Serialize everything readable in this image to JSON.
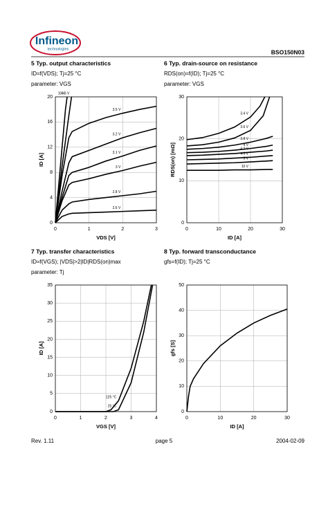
{
  "header": {
    "logo": "Infineon",
    "logo_sub": "technologies",
    "part": "BSO150N03"
  },
  "footer": {
    "rev": "Rev. 1.11",
    "page": "page 5",
    "date": "2004-02-09"
  },
  "chart_data": [
    {
      "type": "line",
      "title": "5 Typ. output characteristics",
      "subtitle": "ID=f(VDS); Tj=25 °C",
      "parameter": "parameter: VGS",
      "x_label": "VDS [V]",
      "y_label": "ID [A]",
      "xlim": [
        0,
        3
      ],
      "ylim": [
        0,
        20
      ],
      "xticks": [
        0,
        1,
        2,
        3
      ],
      "yticks": [
        0,
        4,
        8,
        12,
        16,
        20
      ],
      "grid": true,
      "series": [
        {
          "name": "10 V",
          "color": "#000000",
          "x": [
            0,
            0.1,
            0.2,
            0.3,
            0.35
          ],
          "values": [
            0,
            6,
            12,
            18,
            20
          ]
        },
        {
          "name": "4.5 V",
          "color": "#000000",
          "x": [
            0,
            0.1,
            0.2,
            0.3,
            0.4,
            0.48
          ],
          "values": [
            0,
            4.5,
            9,
            13,
            17,
            20
          ]
        },
        {
          "name": "3.5 V",
          "color": "#000000",
          "x": [
            0,
            0.2,
            0.4,
            0.5,
            1,
            1.5,
            2,
            2.5,
            3
          ],
          "values": [
            0,
            7.5,
            13.5,
            14.5,
            15.8,
            16.7,
            17.4,
            18,
            18.5
          ]
        },
        {
          "name": "3.2 V",
          "color": "#000000",
          "x": [
            0,
            0.2,
            0.4,
            0.5,
            1,
            1.5,
            2,
            2.5,
            3
          ],
          "values": [
            0,
            5,
            9.5,
            10.5,
            11.5,
            12.5,
            13.5,
            14.3,
            15
          ]
        },
        {
          "name": "3.1 V",
          "color": "#000000",
          "x": [
            0,
            0.2,
            0.4,
            0.5,
            1,
            1.5,
            2,
            2.5,
            3
          ],
          "values": [
            0,
            4,
            7.5,
            8,
            8.8,
            9.8,
            10.6,
            11.5,
            12.2
          ]
        },
        {
          "name": "3 V",
          "color": "#000000",
          "x": [
            0,
            0.2,
            0.4,
            0.5,
            1,
            1.5,
            2,
            2.5,
            3
          ],
          "values": [
            0,
            3.5,
            6,
            6.4,
            7,
            7.7,
            8.3,
            9,
            9.6
          ]
        },
        {
          "name": "2.8 V",
          "color": "#000000",
          "x": [
            0,
            0.2,
            0.4,
            0.5,
            1,
            1.5,
            2,
            2.5,
            3
          ],
          "values": [
            0,
            2,
            3,
            3.3,
            3.7,
            4,
            4.3,
            4.6,
            5
          ]
        },
        {
          "name": "2.6 V",
          "color": "#000000",
          "x": [
            0,
            0.2,
            0.4,
            0.5,
            1,
            1.5,
            2,
            2.5,
            3
          ],
          "values": [
            0,
            1,
            1.4,
            1.5,
            1.6,
            1.7,
            1.8,
            1.9,
            2
          ]
        }
      ]
    },
    {
      "type": "line",
      "title": "6 Typ. drain-source on resistance",
      "subtitle": "RDS(on)=f(ID); Tj=25 °C",
      "parameter": "parameter: VGS",
      "x_label": "ID [A]",
      "y_label": "RDS(on) [mΩ]",
      "xlim": [
        0,
        30
      ],
      "ylim": [
        0,
        30
      ],
      "xticks": [
        0,
        10,
        20,
        30
      ],
      "yticks": [
        0,
        10,
        20,
        30
      ],
      "grid": true,
      "series": [
        {
          "name": "3.4 V",
          "color": "#000000",
          "x": [
            0,
            5,
            10,
            15,
            20,
            23,
            24.5
          ],
          "values": [
            19.8,
            20.3,
            21.3,
            22.8,
            25.2,
            27.8,
            30
          ]
        },
        {
          "name": "3.6 V",
          "color": "#000000",
          "x": [
            0,
            5,
            10,
            15,
            20,
            24,
            26
          ],
          "values": [
            18.3,
            18.6,
            19.2,
            20.2,
            22,
            25.5,
            30
          ]
        },
        {
          "name": "3.8 V",
          "color": "#000000",
          "x": [
            0,
            5,
            10,
            15,
            20,
            25,
            27
          ],
          "values": [
            17.5,
            17.7,
            18,
            18.5,
            19.2,
            20.1,
            20.6
          ]
        },
        {
          "name": "4 V",
          "color": "#000000",
          "x": [
            0,
            5,
            10,
            15,
            20,
            25,
            27
          ],
          "values": [
            16.7,
            16.8,
            17,
            17.3,
            17.7,
            18.2,
            18.5
          ]
        },
        {
          "name": "4.2 V",
          "color": "#000000",
          "x": [
            0,
            5,
            10,
            15,
            20,
            25,
            27
          ],
          "values": [
            16,
            16.1,
            16.3,
            16.5,
            16.8,
            17.1,
            17.3
          ]
        },
        {
          "name": "4.5 V",
          "color": "#000000",
          "x": [
            0,
            5,
            10,
            15,
            20,
            25,
            27
          ],
          "values": [
            15,
            15.1,
            15.2,
            15.4,
            15.6,
            15.9,
            16
          ]
        },
        {
          "name": "5 V",
          "color": "#000000",
          "x": [
            0,
            5,
            10,
            15,
            20,
            25,
            27
          ],
          "values": [
            14,
            14.1,
            14.2,
            14.3,
            14.5,
            14.7,
            14.8
          ]
        },
        {
          "name": "10 V",
          "color": "#000000",
          "x": [
            0,
            5,
            10,
            15,
            20,
            25,
            27
          ],
          "values": [
            12.5,
            12.5,
            12.5,
            12.6,
            12.6,
            12.7,
            12.7
          ]
        }
      ]
    },
    {
      "type": "line",
      "title": "7 Typ. transfer characteristics",
      "subtitle": "ID=f(VGS); |VDS|>2|ID|RDS(on)max",
      "parameter": "parameter: Tj",
      "x_label": "VGS [V]",
      "y_label": "ID [A]",
      "xlim": [
        0,
        4
      ],
      "ylim": [
        0,
        35
      ],
      "xticks": [
        0,
        1,
        2,
        3,
        4
      ],
      "yticks": [
        0,
        5,
        10,
        15,
        20,
        25,
        30,
        35
      ],
      "grid": true,
      "series": [
        {
          "name": "125 °C",
          "color": "#000000",
          "x": [
            0,
            2,
            2.2,
            2.5,
            3,
            3.5,
            3.8
          ],
          "values": [
            0,
            0,
            0.5,
            3,
            12,
            25,
            35
          ]
        },
        {
          "name": "25 °C",
          "color": "#000000",
          "x": [
            0,
            2.3,
            2.5,
            3,
            3.5,
            3.85
          ],
          "values": [
            0,
            0,
            0.5,
            8,
            22,
            35
          ]
        }
      ]
    },
    {
      "type": "line",
      "title": "8 Typ. forward transconductance",
      "subtitle": "gfs=f(ID); Tj=25 °C",
      "x_label": "ID [A]",
      "y_label": "gfs [S]",
      "xlim": [
        0,
        30
      ],
      "ylim": [
        0,
        50
      ],
      "xticks": [
        0,
        10,
        20,
        30
      ],
      "yticks": [
        0,
        10,
        20,
        30,
        40,
        50
      ],
      "grid": true,
      "series": [
        {
          "color": "#000000",
          "x": [
            0,
            0.5,
            1,
            2,
            5,
            10,
            15,
            20,
            25,
            30
          ],
          "values": [
            0,
            6,
            10,
            13,
            19,
            26,
            31,
            35,
            38,
            40.5
          ]
        }
      ]
    }
  ]
}
